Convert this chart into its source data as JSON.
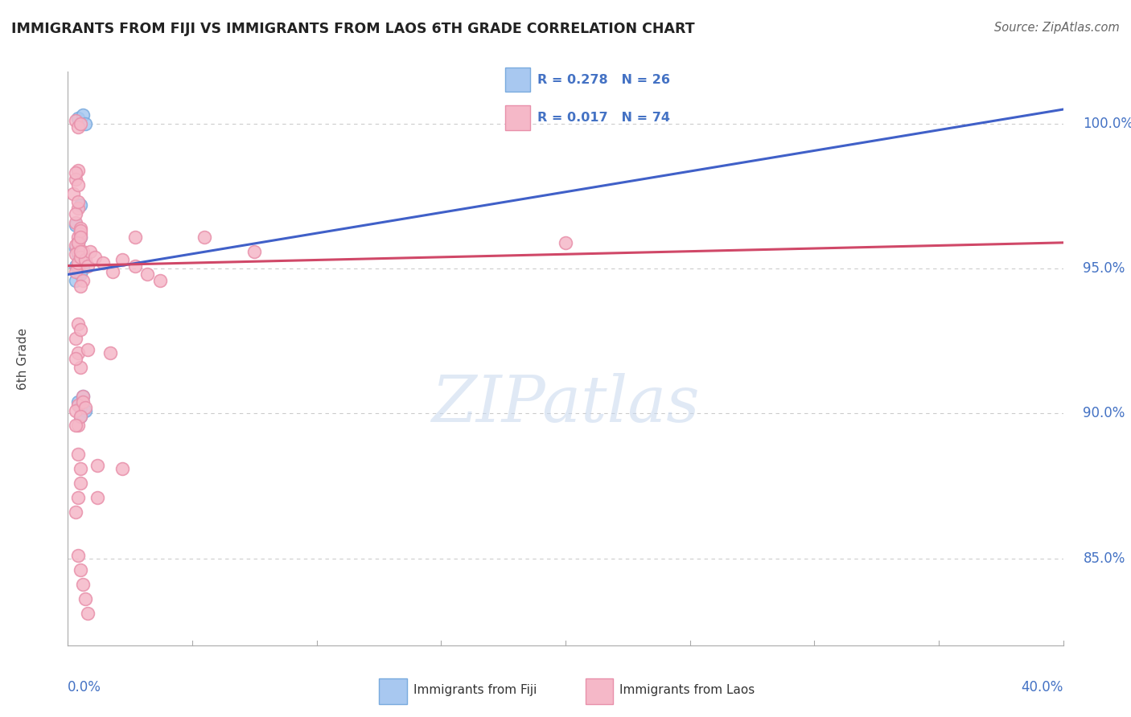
{
  "title": "IMMIGRANTS FROM FIJI VS IMMIGRANTS FROM LAOS 6TH GRADE CORRELATION CHART",
  "source": "Source: ZipAtlas.com",
  "ylabel": "6th Grade",
  "xlim": [
    0.0,
    40.0
  ],
  "ylim": [
    82.0,
    101.8
  ],
  "fiji_color": "#a8c8f0",
  "fiji_edge_color": "#7aabde",
  "laos_color": "#f5b8c8",
  "laos_edge_color": "#e890aa",
  "fiji_line_color": "#4060c8",
  "laos_line_color": "#d04868",
  "R_fiji": 0.278,
  "N_fiji": 26,
  "R_laos": 0.017,
  "N_laos": 74,
  "fiji_line_x0": 0.0,
  "fiji_line_y0": 94.8,
  "fiji_line_x1": 40.0,
  "fiji_line_y1": 100.5,
  "laos_line_x0": 0.0,
  "laos_line_y0": 95.1,
  "laos_line_x1": 40.0,
  "laos_line_y1": 95.9,
  "fiji_x": [
    0.4,
    0.6,
    0.7,
    0.5,
    0.3,
    0.4,
    0.5,
    0.3,
    0.4,
    0.4,
    0.5,
    0.3,
    0.4,
    0.5,
    0.6,
    0.4,
    0.3,
    0.4,
    0.5,
    0.6,
    0.5,
    0.4,
    0.6,
    0.5,
    0.7,
    0.5
  ],
  "fiji_y": [
    100.2,
    100.3,
    100.0,
    97.2,
    96.5,
    95.9,
    96.1,
    95.7,
    95.5,
    95.6,
    95.4,
    95.1,
    95.2,
    94.9,
    95.3,
    95.0,
    94.6,
    95.1,
    95.3,
    95.0,
    94.8,
    90.4,
    90.6,
    90.2,
    90.1,
    89.9
  ],
  "laos_x": [
    0.3,
    0.4,
    0.5,
    0.4,
    0.3,
    0.2,
    0.4,
    0.3,
    0.4,
    0.3,
    0.4,
    0.5,
    0.5,
    0.3,
    0.4,
    0.4,
    0.3,
    0.4,
    0.3,
    0.4,
    0.5,
    0.5,
    0.6,
    0.5,
    0.4,
    0.3,
    0.4,
    0.5,
    0.6,
    0.5,
    0.7,
    0.8,
    0.9,
    1.1,
    1.4,
    1.8,
    2.2,
    2.7,
    3.2,
    3.7,
    0.3,
    0.4,
    0.5,
    0.3,
    0.4,
    0.5,
    0.6,
    0.4,
    0.3,
    0.4,
    0.6,
    0.7,
    0.5,
    0.3,
    0.4,
    0.5,
    0.5,
    0.4,
    0.3,
    0.4,
    0.5,
    0.6,
    0.7,
    0.8,
    1.2,
    1.7,
    2.2,
    2.7,
    0.5,
    0.8,
    1.2,
    5.5,
    7.5,
    20.0
  ],
  "laos_y": [
    100.1,
    99.9,
    100.0,
    98.4,
    98.1,
    97.6,
    97.1,
    98.3,
    97.9,
    96.6,
    96.1,
    96.4,
    96.2,
    96.9,
    97.3,
    95.9,
    95.8,
    95.6,
    95.5,
    95.9,
    96.3,
    96.1,
    95.6,
    95.3,
    95.1,
    94.9,
    95.2,
    95.4,
    94.6,
    94.4,
    95.3,
    95.1,
    95.6,
    95.4,
    95.2,
    94.9,
    95.3,
    95.1,
    94.8,
    94.6,
    92.6,
    92.1,
    91.6,
    91.9,
    93.1,
    92.9,
    90.6,
    90.3,
    90.1,
    89.6,
    90.4,
    90.2,
    89.9,
    89.6,
    88.6,
    88.1,
    87.6,
    87.1,
    86.6,
    85.1,
    84.6,
    84.1,
    83.6,
    83.1,
    87.1,
    92.1,
    88.1,
    96.1,
    95.6,
    92.2,
    88.2,
    96.1,
    95.6,
    95.9
  ],
  "ytick_vals": [
    85.0,
    90.0,
    95.0,
    100.0
  ],
  "grid_color": "#cccccc",
  "watermark_text": "ZIPatlas",
  "legend_fiji_text": "R = 0.278   N = 26",
  "legend_laos_text": "R = 0.017   N = 74",
  "bottom_legend_fiji": "Immigrants from Fiji",
  "bottom_legend_laos": "Immigrants from Laos"
}
